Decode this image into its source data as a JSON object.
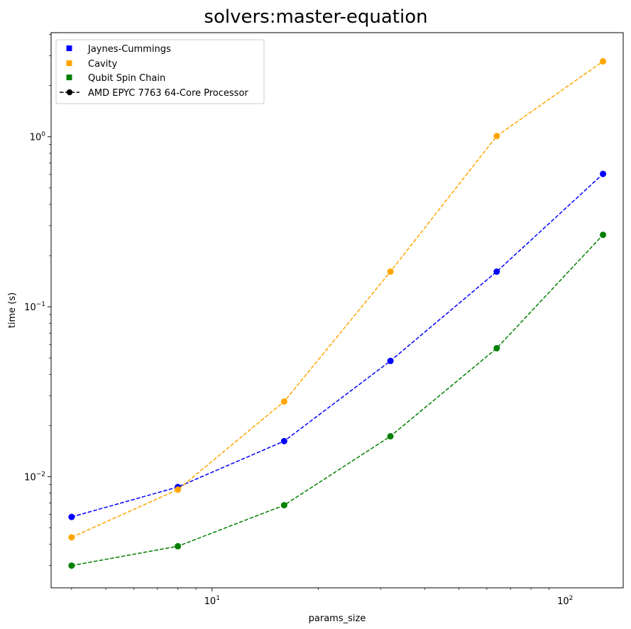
{
  "chart_data": {
    "type": "line",
    "title": "solvers:master-equation",
    "xlabel": "params_size",
    "ylabel": "time (s)",
    "xscale": "log",
    "yscale": "log",
    "xlim": [
      3.5,
      146
    ],
    "ylim": [
      0.00222,
      4.1
    ],
    "grid": false,
    "legend_position": "top-left",
    "x_ticks": [
      {
        "base": "10",
        "exp": "1",
        "value": 10
      },
      {
        "base": "10",
        "exp": "2",
        "value": 100
      }
    ],
    "y_ticks": [
      {
        "base": "10",
        "exp": "−2",
        "value": 0.01
      },
      {
        "base": "10",
        "exp": "−1",
        "value": 0.1
      },
      {
        "base": "10",
        "exp": "0",
        "value": 1
      }
    ],
    "x": [
      4,
      8,
      16,
      32,
      64,
      128
    ],
    "series": [
      {
        "name": "Jaynes-Cummings",
        "color": "#0000ff",
        "values": [
          0.0058,
          0.0087,
          0.0162,
          0.048,
          0.161,
          0.605
        ]
      },
      {
        "name": "Cavity",
        "color": "#ffa500",
        "values": [
          0.0044,
          0.0084,
          0.0277,
          0.161,
          1.01,
          2.78
        ]
      },
      {
        "name": "Qubit Spin Chain",
        "color": "#008000",
        "values": [
          0.003,
          0.0039,
          0.0068,
          0.0173,
          0.057,
          0.265
        ]
      }
    ],
    "legend": {
      "processor_label": "AMD EPYC 7763 64-Core Processor",
      "processor_color": "#000000"
    }
  }
}
